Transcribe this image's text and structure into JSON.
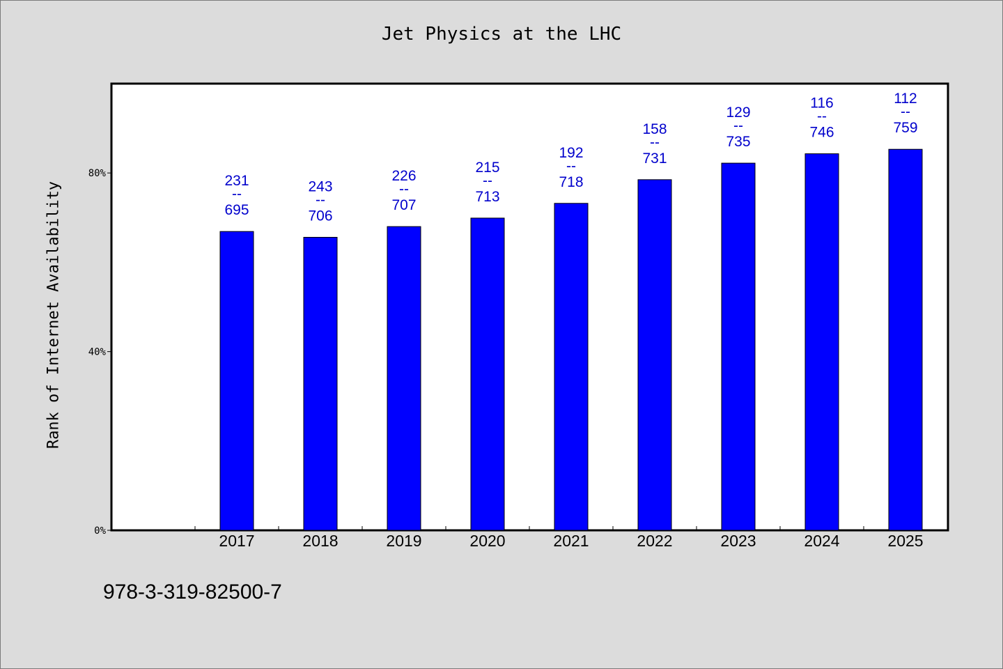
{
  "chart_title": "Jet Physics at the LHC",
  "y_axis_title": "Rank of Internet Availability",
  "footer_code": "978-3-319-82500-7",
  "colors": {
    "bar": "#0000ff",
    "label": "#0000cc",
    "background": "#dcdcdc",
    "plot": "#ffffff"
  },
  "chart_data": {
    "type": "bar",
    "title": "Jet Physics at the LHC",
    "xlabel": "",
    "ylabel": "Rank of Internet Availability",
    "categories": [
      "2017",
      "2018",
      "2019",
      "2020",
      "2021",
      "2022",
      "2023",
      "2024",
      "2025"
    ],
    "values": [
      66.9,
      65.6,
      68.0,
      69.9,
      73.2,
      78.5,
      82.2,
      84.3,
      85.3
    ],
    "value_unit": "%",
    "data_labels": [
      {
        "top": "231",
        "mid": "--",
        "bottom": "695"
      },
      {
        "top": "243",
        "mid": "--",
        "bottom": "706"
      },
      {
        "top": "226",
        "mid": "--",
        "bottom": "707"
      },
      {
        "top": "215",
        "mid": "--",
        "bottom": "713"
      },
      {
        "top": "192",
        "mid": "--",
        "bottom": "718"
      },
      {
        "top": "158",
        "mid": "--",
        "bottom": "731"
      },
      {
        "top": "129",
        "mid": "--",
        "bottom": "735"
      },
      {
        "top": "116",
        "mid": "--",
        "bottom": "746"
      },
      {
        "top": "112",
        "mid": "--",
        "bottom": "759"
      }
    ],
    "ylim": [
      0,
      100
    ],
    "yticks": [
      0,
      40,
      80
    ],
    "ytick_labels": [
      "0%",
      "40%",
      "80%"
    ],
    "grid": false,
    "legend": "none"
  }
}
